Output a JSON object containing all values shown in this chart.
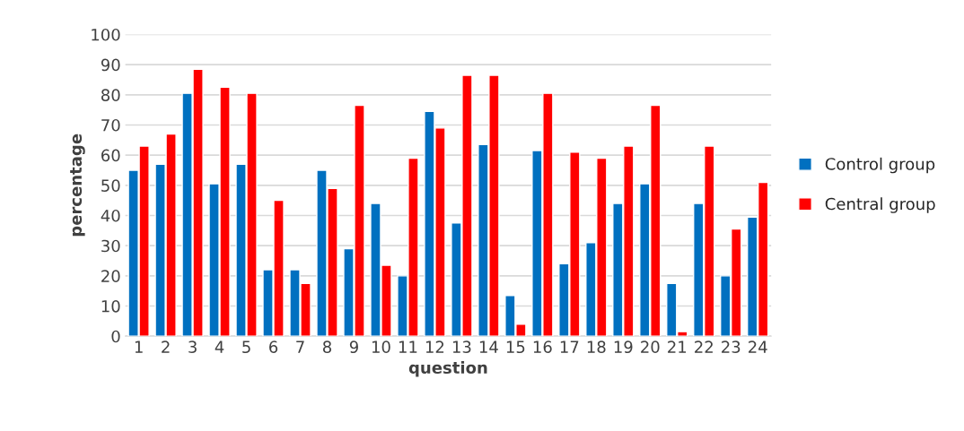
{
  "chart_data": {
    "type": "bar",
    "xlabel": "question",
    "ylabel": "percentage",
    "categories": [
      "1",
      "2",
      "3",
      "4",
      "5",
      "6",
      "7",
      "8",
      "9",
      "10",
      "11",
      "12",
      "13",
      "14",
      "15",
      "16",
      "17",
      "18",
      "19",
      "20",
      "21",
      "22",
      "23",
      "24"
    ],
    "series": [
      {
        "name": "Control group",
        "color": "#0070c0",
        "values": [
          55,
          57,
          80.5,
          50.5,
          57,
          22,
          22,
          55,
          29,
          44,
          20,
          74.5,
          37.5,
          63.5,
          13.5,
          61.5,
          24,
          31,
          44,
          50.5,
          17.5,
          44,
          20,
          39.5
        ]
      },
      {
        "name": "Central group",
        "color": "#ff0000",
        "values": [
          63,
          67,
          88.5,
          82.5,
          80.5,
          45,
          17.5,
          49,
          76.5,
          23.5,
          59,
          69,
          86.5,
          86.5,
          4,
          80.5,
          61,
          59,
          63,
          76.5,
          1.5,
          63,
          35.5,
          51
        ]
      }
    ],
    "ylim": [
      0,
      100
    ],
    "yticks": [
      0,
      10,
      20,
      30,
      40,
      50,
      60,
      70,
      80,
      90,
      100
    ],
    "grid": "y",
    "legend": "right"
  }
}
